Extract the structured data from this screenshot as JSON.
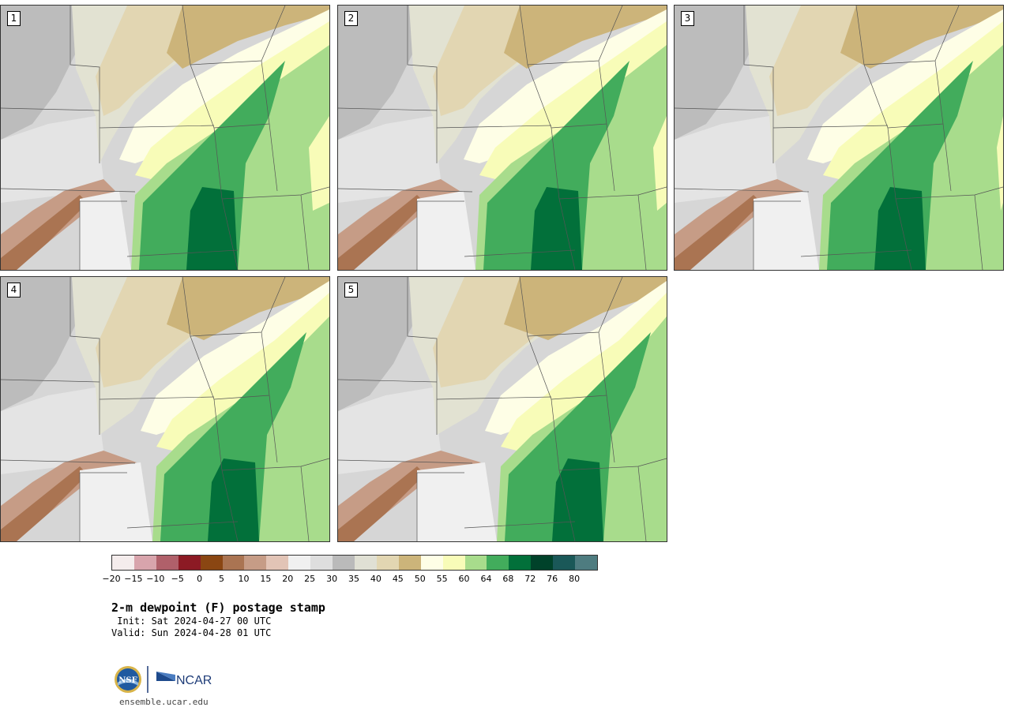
{
  "panels": [
    {
      "label": "1",
      "variant": 0
    },
    {
      "label": "2",
      "variant": 1
    },
    {
      "label": "3",
      "variant": 2
    },
    {
      "label": "4",
      "variant": 3
    },
    {
      "label": "5",
      "variant": 4
    }
  ],
  "colorbar": {
    "colors": [
      "#f4ecec",
      "#d8a4ac",
      "#b0606a",
      "#8c1a24",
      "#8a4612",
      "#aa7452",
      "#c69c86",
      "#e2c4b6",
      "#f0f0f0",
      "#dedede",
      "#bababa",
      "#e0e0d4",
      "#e2d6b2",
      "#ccb47a",
      "#fefee6",
      "#f8fcb8",
      "#a8dc8c",
      "#42ac5c",
      "#02703a",
      "#00422a",
      "#1a5858",
      "#4e7c80"
    ],
    "ticks": [
      "−20",
      "−15",
      "−10",
      "−5",
      "0",
      "5",
      "10",
      "15",
      "20",
      "25",
      "30",
      "35",
      "40",
      "45",
      "50",
      "55",
      "60",
      "64",
      "68",
      "72",
      "76",
      "80"
    ]
  },
  "title": "2-m dewpoint (F) postage stamp",
  "init": " Init: Sat 2024-04-27 00 UTC",
  "valid": "Valid: Sun 2024-04-28 01 UTC",
  "logos": {
    "nsf": "NSF",
    "ncar": "NCAR"
  },
  "footer_url": "ensemble.ucar.edu"
}
